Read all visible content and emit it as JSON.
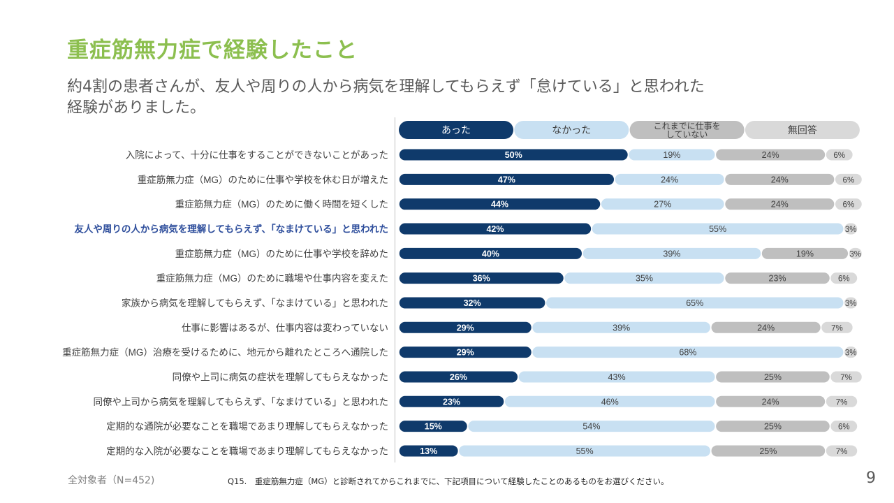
{
  "title": "重症筋無力症で経験したこと",
  "subtitle": "約4割の患者さんが、友人や周りの人から病気を理解してもらえず「怠けている」と思われた経験がありました。",
  "footer": {
    "sample": "全対象者（N=452)",
    "question": "Q15.　重症筋無力症（MG）と診断されてからこれまでに、下記項目について経験したことのあるものをお選びください。",
    "page_number": "9"
  },
  "colors": {
    "title": "#8cbf4f",
    "highlight_label": "#2e4e9c"
  },
  "chart_data": {
    "type": "bar",
    "orientation": "horizontal",
    "stacked": true,
    "value_unit": "%",
    "series": [
      {
        "name": "あった",
        "name_lines": [
          "あった"
        ],
        "color": "#0f3a6b",
        "text_color": "#ffffff"
      },
      {
        "name": "なかった",
        "name_lines": [
          "なかった"
        ],
        "color": "#c8e0f2",
        "text_color": "#404040"
      },
      {
        "name": "これまでに仕事をしていない",
        "name_lines": [
          "これまでに仕事を",
          "していない"
        ],
        "color": "#bfbfbf",
        "text_color": "#404040"
      },
      {
        "name": "無回答",
        "name_lines": [
          "無回答"
        ],
        "color": "#d9d9d9",
        "text_color": "#404040"
      }
    ],
    "categories": [
      "入院によって、十分に仕事をすることができないことがあった",
      "重症筋無力症（MG）のために仕事や学校を休む日が増えた",
      "重症筋無力症（MG）のために働く時間を短くした",
      "友人や周りの人から病気を理解してもらえず、「なまけている」と思われた",
      "重症筋無力症（MG）のために仕事や学校を辞めた",
      "重症筋無力症（MG）のために職場や仕事内容を変えた",
      "家族から病気を理解してもらえず、「なまけている」と思われた",
      "仕事に影響はあるが、仕事内容は変わっていない",
      "重症筋無力症（MG）治療を受けるために、地元から離れたところへ通院した",
      "同僚や上司に病気の症状を理解してもらえなかった",
      "同僚や上司から病気を理解してもらえず、「なまけている」と思われた",
      "定期的な通院が必要なことを職場であまり理解してもらえなかった",
      "定期的な入院が必要なことを職場であまり理解してもらえなかった"
    ],
    "highlight_category_index": 3,
    "rows": [
      [
        50,
        19,
        24,
        6
      ],
      [
        47,
        24,
        24,
        6
      ],
      [
        44,
        27,
        24,
        6
      ],
      [
        42,
        55,
        0,
        3
      ],
      [
        40,
        39,
        19,
        3
      ],
      [
        36,
        35,
        23,
        6
      ],
      [
        32,
        65,
        0,
        3
      ],
      [
        29,
        39,
        24,
        7
      ],
      [
        29,
        68,
        0,
        3
      ],
      [
        26,
        43,
        25,
        7
      ],
      [
        23,
        46,
        24,
        7
      ],
      [
        15,
        54,
        25,
        6
      ],
      [
        13,
        55,
        25,
        7
      ]
    ],
    "xlim": [
      0,
      100
    ]
  }
}
